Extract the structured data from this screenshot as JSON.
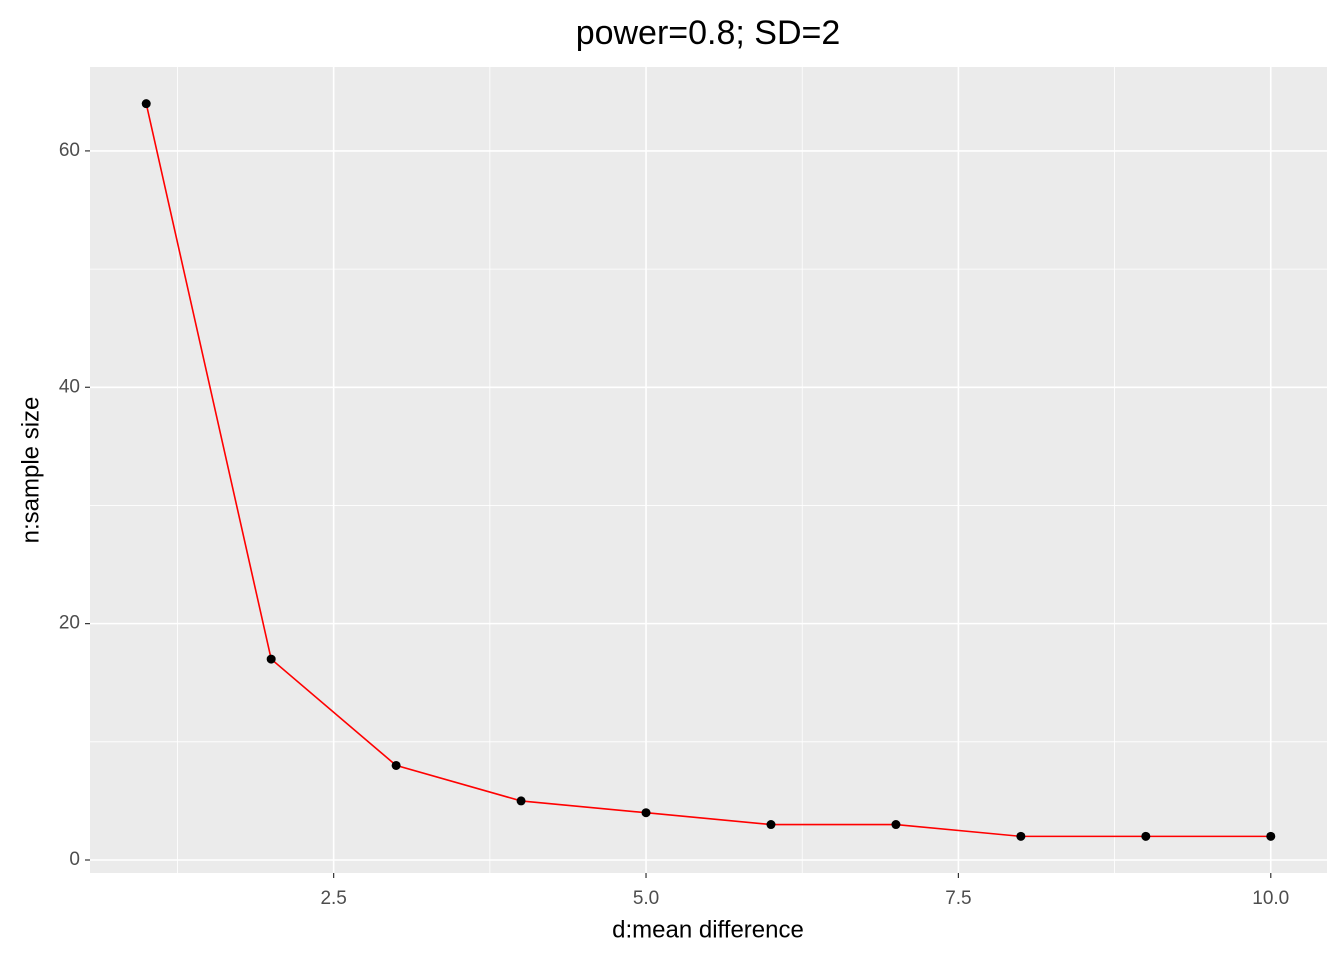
{
  "chart_data": {
    "type": "line",
    "title": "power=0.8; SD=2",
    "x_label": "d:mean difference",
    "y_label": "n:sample size",
    "x": [
      1,
      2,
      3,
      4,
      5,
      6,
      7,
      8,
      9,
      10
    ],
    "series": [
      {
        "values": [
          64,
          17,
          8,
          5,
          4,
          3,
          3,
          2,
          2,
          2
        ],
        "color": "#ff0000",
        "marker_color": "#000000"
      }
    ],
    "xlim": [
      0.55,
      10.45
    ],
    "ylim": [
      -1.1,
      67.1
    ],
    "xticks": [
      2.5,
      {
        "value": 5,
        "label": "5.0"
      },
      7.5,
      {
        "value": 10,
        "label": "10.0"
      }
    ],
    "yticks": [
      0,
      20,
      40,
      60
    ],
    "grid": true,
    "minor_grid": true,
    "panel_color": "#ebebeb"
  }
}
